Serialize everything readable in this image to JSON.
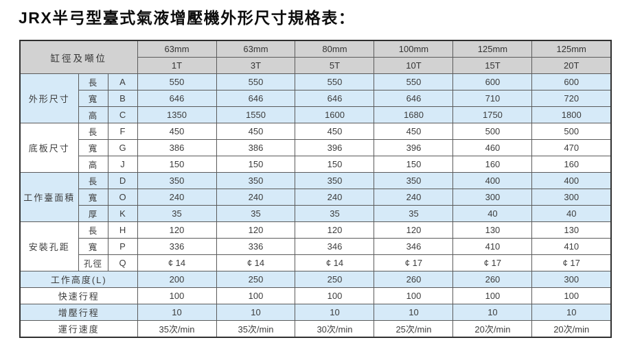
{
  "title": "JRX半弓型臺式氣液增壓機外形尺寸規格表：",
  "colors": {
    "header_bg": "#d2d2d2",
    "band_blue": "#d6eaf8",
    "band_white": "#ffffff",
    "border": "#5a5a5a",
    "outer_border": "#2f2f2f",
    "text": "#3c3c3c"
  },
  "table": {
    "corner_label": "缸徑及噸位",
    "columns": [
      {
        "bore": "63mm",
        "tonnage": "1T"
      },
      {
        "bore": "63mm",
        "tonnage": "3T"
      },
      {
        "bore": "80mm",
        "tonnage": "5T"
      },
      {
        "bore": "100mm",
        "tonnage": "10T"
      },
      {
        "bore": "125mm",
        "tonnage": "15T"
      },
      {
        "bore": "125mm",
        "tonnage": "20T"
      }
    ],
    "groups": [
      {
        "name": "外形尺寸",
        "rows": [
          {
            "dim": "長",
            "code": "A",
            "values": [
              "550",
              "550",
              "550",
              "550",
              "600",
              "600"
            ]
          },
          {
            "dim": "寬",
            "code": "B",
            "values": [
              "646",
              "646",
              "646",
              "646",
              "710",
              "720"
            ]
          },
          {
            "dim": "高",
            "code": "C",
            "values": [
              "1350",
              "1550",
              "1600",
              "1680",
              "1750",
              "1800"
            ]
          }
        ]
      },
      {
        "name": "底板尺寸",
        "rows": [
          {
            "dim": "長",
            "code": "F",
            "values": [
              "450",
              "450",
              "450",
              "450",
              "500",
              "500"
            ]
          },
          {
            "dim": "寬",
            "code": "G",
            "values": [
              "386",
              "386",
              "396",
              "396",
              "460",
              "470"
            ]
          },
          {
            "dim": "高",
            "code": "J",
            "values": [
              "150",
              "150",
              "150",
              "150",
              "160",
              "160"
            ]
          }
        ]
      },
      {
        "name": "工作臺面積",
        "rows": [
          {
            "dim": "長",
            "code": "D",
            "values": [
              "350",
              "350",
              "350",
              "350",
              "400",
              "400"
            ]
          },
          {
            "dim": "寬",
            "code": "O",
            "values": [
              "240",
              "240",
              "240",
              "240",
              "300",
              "300"
            ]
          },
          {
            "dim": "厚",
            "code": "K",
            "values": [
              "35",
              "35",
              "35",
              "35",
              "40",
              "40"
            ]
          }
        ]
      },
      {
        "name": "安裝孔距",
        "rows": [
          {
            "dim": "長",
            "code": "H",
            "values": [
              "120",
              "120",
              "120",
              "120",
              "130",
              "130"
            ]
          },
          {
            "dim": "寬",
            "code": "P",
            "values": [
              "336",
              "336",
              "346",
              "346",
              "410",
              "410"
            ]
          },
          {
            "dim": "孔徑",
            "code": "Q",
            "values": [
              "¢ 14",
              "¢ 14",
              "¢ 14",
              "¢ 17",
              "¢ 17",
              "¢ 17"
            ]
          }
        ]
      }
    ],
    "footer_rows": [
      {
        "label": "工作高度(L)",
        "values": [
          "200",
          "250",
          "250",
          "260",
          "260",
          "300"
        ]
      },
      {
        "label": "快速行程",
        "values": [
          "100",
          "100",
          "100",
          "100",
          "100",
          "100"
        ]
      },
      {
        "label": "增壓行程",
        "values": [
          "10",
          "10",
          "10",
          "10",
          "10",
          "10"
        ]
      },
      {
        "label": "運行速度",
        "values": [
          "35次/min",
          "35次/min",
          "30次/min",
          "25次/min",
          "20次/min",
          "20次/min"
        ]
      }
    ]
  }
}
